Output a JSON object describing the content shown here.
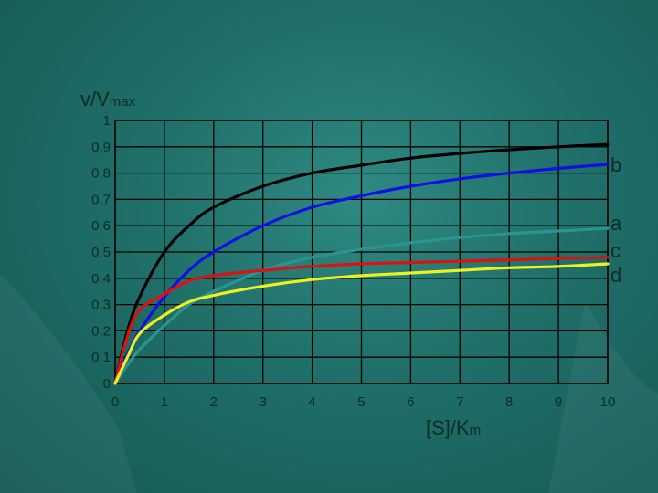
{
  "chart_data": {
    "type": "line",
    "ylabel_main": "v/V",
    "ylabel_sub": "max",
    "xlabel_main": "[S]/K",
    "xlabel_sub": "m",
    "xlim": [
      0,
      10
    ],
    "ylim": [
      0,
      1
    ],
    "x_ticks": [
      "0",
      "1",
      "2",
      "3",
      "4",
      "5",
      "6",
      "7",
      "8",
      "9",
      "10"
    ],
    "y_ticks": [
      "0",
      "0.1",
      "0.2",
      "0.3",
      "0.4",
      "0.5",
      "0.6",
      "0.7",
      "0.8",
      "0.9",
      "1"
    ],
    "grid": true,
    "series": [
      {
        "label": "",
        "color": "#000000",
        "x": [
          0,
          0.25,
          0.5,
          1,
          1.5,
          2,
          3,
          4,
          5,
          6,
          7,
          8,
          9,
          10
        ],
        "y": [
          0,
          0.2,
          0.33,
          0.5,
          0.6,
          0.67,
          0.75,
          0.8,
          0.83,
          0.857,
          0.875,
          0.889,
          0.9,
          0.909
        ]
      },
      {
        "label": "b",
        "color": "#1010e0",
        "x": [
          0,
          0.25,
          0.5,
          1,
          1.5,
          2,
          3,
          4,
          5,
          6,
          7,
          8,
          9,
          10
        ],
        "y": [
          0,
          0.11,
          0.2,
          0.33,
          0.43,
          0.5,
          0.6,
          0.67,
          0.714,
          0.75,
          0.778,
          0.8,
          0.818,
          0.833
        ]
      },
      {
        "label": "a",
        "color": "#2a9590",
        "x": [
          0,
          0.25,
          0.5,
          1,
          1.5,
          2,
          3,
          4,
          5,
          6,
          7,
          8,
          9,
          10
        ],
        "y": [
          0,
          0.07,
          0.13,
          0.22,
          0.3,
          0.35,
          0.43,
          0.48,
          0.51,
          0.535,
          0.555,
          0.57,
          0.58,
          0.59
        ]
      },
      {
        "label": "c",
        "color": "#e01010",
        "x": [
          0,
          0.25,
          0.5,
          1,
          1.5,
          2,
          3,
          4,
          5,
          6,
          7,
          8,
          9,
          10
        ],
        "y": [
          0,
          0.18,
          0.28,
          0.34,
          0.39,
          0.41,
          0.43,
          0.445,
          0.455,
          0.46,
          0.465,
          0.47,
          0.475,
          0.48
        ]
      },
      {
        "label": "d",
        "color": "#f0f020",
        "x": [
          0,
          0.25,
          0.5,
          1,
          1.5,
          2,
          3,
          4,
          5,
          6,
          7,
          8,
          9,
          10
        ],
        "y": [
          0,
          0.1,
          0.19,
          0.26,
          0.31,
          0.335,
          0.37,
          0.395,
          0.41,
          0.42,
          0.43,
          0.44,
          0.445,
          0.455
        ]
      }
    ]
  }
}
